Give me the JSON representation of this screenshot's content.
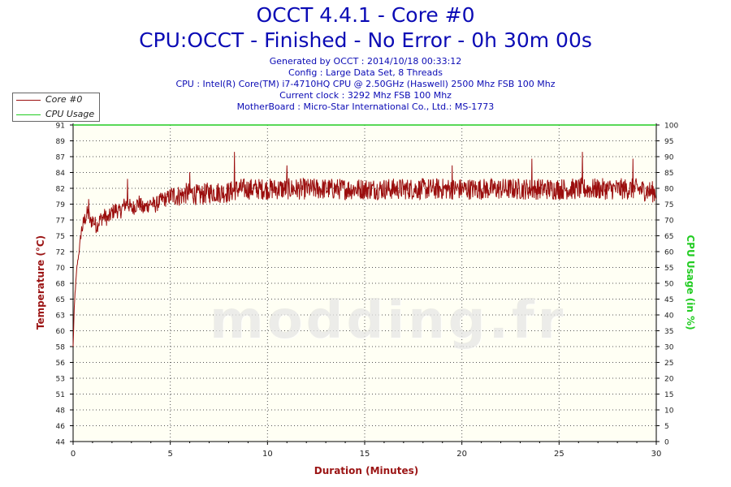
{
  "header": {
    "title": "OCCT 4.4.1 - Core #0",
    "subtitle": "CPU:OCCT - Finished - No Error - 0h 30m 00s",
    "info_lines": [
      "Generated by OCCT : 2014/10/18 00:33:12",
      "Config : Large Data Set, 8 Threads",
      "CPU : Intel(R) Core(TM) i7-4710HQ CPU @ 2.50GHz (Haswell) 2500 Mhz FSB 100 Mhz",
      "Current clock : 3292 Mhz FSB 100 Mhz",
      "MotherBoard : Micro-Star International Co., Ltd.: MS-1773"
    ]
  },
  "watermark": "modding.fr",
  "colors": {
    "temperature": "#9b0e0e",
    "cpu_usage": "#22cc22",
    "title": "#0b0bb5",
    "axis_label": "#9b1414",
    "plot_bg": "#fffff4"
  },
  "chart_data": {
    "type": "line",
    "xlabel": "Duration (Minutes)",
    "ylabel": "Temperature (°C)",
    "y2label": "CPU Usage (in %)",
    "xlim": [
      0,
      30
    ],
    "ylim": [
      44,
      91
    ],
    "y2lim": [
      0,
      100
    ],
    "xticks": [
      0,
      5,
      10,
      15,
      20,
      25,
      30
    ],
    "yticks": [
      44,
      46,
      48,
      51,
      53,
      56,
      58,
      60,
      63,
      65,
      68,
      70,
      72,
      75,
      77,
      79,
      82,
      84,
      87,
      89,
      91
    ],
    "y2ticks": [
      0,
      5,
      10,
      15,
      20,
      25,
      30,
      35,
      40,
      45,
      50,
      55,
      60,
      65,
      70,
      75,
      80,
      85,
      90,
      95,
      100
    ],
    "grid": true,
    "legend": "top-left",
    "series": [
      {
        "name": "Core #0",
        "axis": "left",
        "points": [
          [
            0,
            58
          ],
          [
            0.05,
            63
          ],
          [
            0.1,
            66
          ],
          [
            0.2,
            70
          ],
          [
            0.3,
            72
          ],
          [
            0.4,
            75
          ],
          [
            0.5,
            76
          ],
          [
            0.6,
            77
          ],
          [
            0.75,
            78
          ],
          [
            0.9,
            76.5
          ],
          [
            1.0,
            77
          ],
          [
            1.2,
            76
          ],
          [
            1.4,
            77
          ],
          [
            1.6,
            77.5
          ],
          [
            1.8,
            77
          ],
          [
            2.0,
            78
          ],
          [
            2.2,
            78.5
          ],
          [
            2.4,
            78
          ],
          [
            2.6,
            79
          ],
          [
            2.8,
            79.5
          ],
          [
            3.0,
            78.5
          ],
          [
            3.2,
            79
          ],
          [
            3.4,
            79.5
          ],
          [
            3.6,
            78.5
          ],
          [
            3.8,
            79
          ],
          [
            4.0,
            79.5
          ],
          [
            4.2,
            79
          ],
          [
            4.4,
            79.5
          ],
          [
            4.6,
            80
          ],
          [
            4.8,
            80
          ],
          [
            5.0,
            80.5
          ],
          [
            5.5,
            80.5
          ],
          [
            6,
            81
          ],
          [
            6.5,
            80.5
          ],
          [
            7,
            81
          ],
          [
            7.5,
            81
          ],
          [
            8,
            81
          ],
          [
            8.5,
            81.5
          ],
          [
            9,
            81.5
          ],
          [
            9.5,
            81.5
          ],
          [
            10,
            81.5
          ],
          [
            11,
            81.5
          ],
          [
            12,
            81.5
          ],
          [
            13,
            81.5
          ],
          [
            14,
            81.5
          ],
          [
            15,
            81.5
          ],
          [
            16,
            81.5
          ],
          [
            17,
            81.5
          ],
          [
            18,
            81.5
          ],
          [
            19,
            81.5
          ],
          [
            20,
            81.5
          ],
          [
            21,
            81.5
          ],
          [
            22,
            81.5
          ],
          [
            23,
            81.5
          ],
          [
            24,
            81.5
          ],
          [
            25,
            81.5
          ],
          [
            26,
            81.5
          ],
          [
            27,
            81.5
          ],
          [
            28,
            81.5
          ],
          [
            29,
            81.5
          ],
          [
            30,
            81
          ]
        ],
        "peaks": [
          [
            0.8,
            80
          ],
          [
            2.8,
            83
          ],
          [
            6.0,
            84
          ],
          [
            8.3,
            87
          ],
          [
            11.0,
            85
          ],
          [
            19.5,
            85
          ],
          [
            23.6,
            86
          ],
          [
            26.2,
            87
          ],
          [
            28.8,
            86
          ]
        ]
      },
      {
        "name": "CPU Usage",
        "axis": "right",
        "points": [
          [
            0,
            100
          ],
          [
            30,
            100
          ]
        ]
      }
    ]
  }
}
